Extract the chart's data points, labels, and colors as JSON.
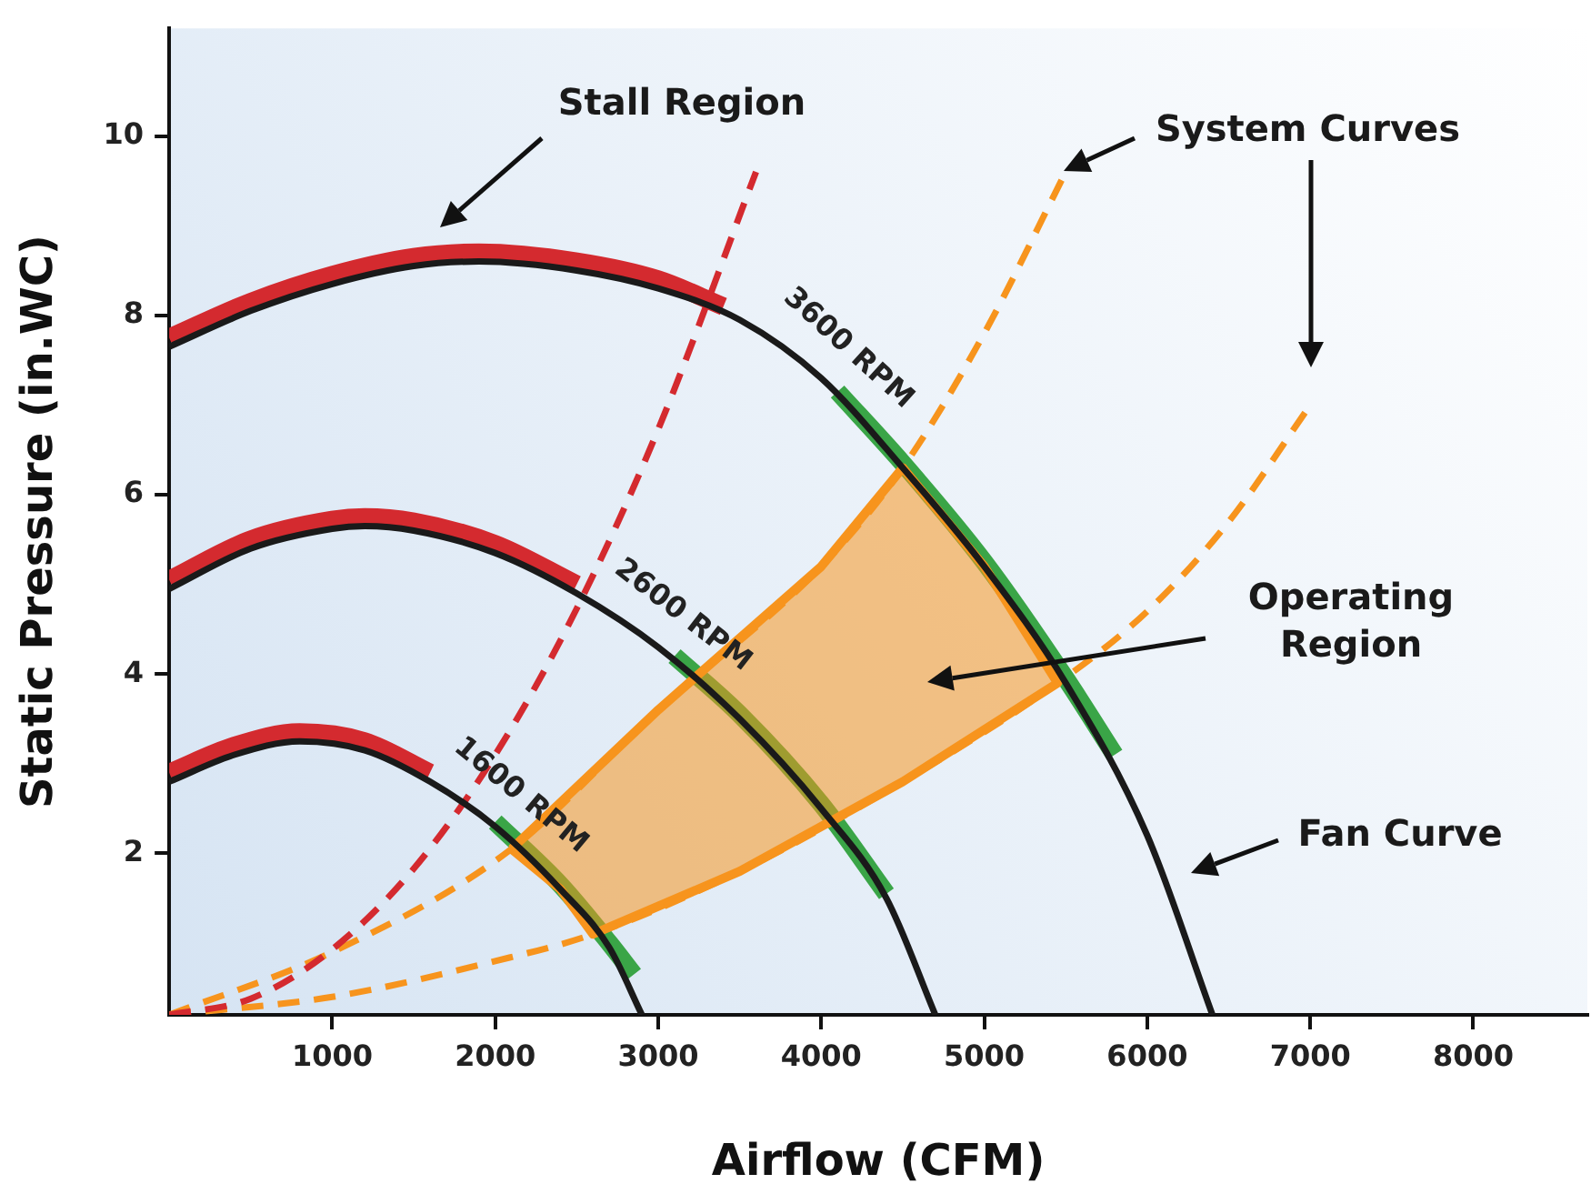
{
  "chart_data": {
    "type": "line",
    "xlabel": "Airflow (CFM)",
    "ylabel": "Static Pressure (in.WC)",
    "xlim": [
      0,
      8700
    ],
    "ylim": [
      0.2,
      11.2
    ],
    "xticks": [
      1000,
      2000,
      3000,
      4000,
      5000,
      6000,
      7000,
      8000
    ],
    "yticks": [
      2,
      4,
      6,
      8,
      10
    ],
    "grid": false,
    "legend": false,
    "marker": "none",
    "series": [
      {
        "name": "3600 RPM",
        "color": "#1a1a1a",
        "line_style": "solid",
        "x": [
          0,
          500,
          1000,
          1500,
          1900,
          2500,
          3000,
          3500,
          4000,
          4500,
          5000,
          5500,
          6000,
          6400
        ],
        "values": [
          7.65,
          8.05,
          8.35,
          8.55,
          8.6,
          8.5,
          8.3,
          7.95,
          7.3,
          6.3,
          5.2,
          3.9,
          2.2,
          0.2
        ]
      },
      {
        "name": "2600 RPM",
        "color": "#1a1a1a",
        "line_style": "solid",
        "x": [
          0,
          500,
          1000,
          1200,
          1500,
          2000,
          2500,
          3000,
          3500,
          4000,
          4400,
          4700
        ],
        "values": [
          4.95,
          5.4,
          5.62,
          5.65,
          5.6,
          5.35,
          4.9,
          4.3,
          3.5,
          2.5,
          1.5,
          0.2
        ]
      },
      {
        "name": "1600 RPM",
        "color": "#1a1a1a",
        "line_style": "solid",
        "x": [
          0,
          400,
          800,
          1200,
          1600,
          2000,
          2400,
          2700,
          2900
        ],
        "values": [
          2.8,
          3.1,
          3.25,
          3.15,
          2.8,
          2.3,
          1.6,
          0.95,
          0.2
        ]
      },
      {
        "color": "#d42a2f",
        "line_style": "solid",
        "x": [
          0,
          500,
          1000,
          1500,
          1900,
          2500,
          3000,
          3400
        ],
        "values": [
          7.75,
          8.15,
          8.45,
          8.65,
          8.7,
          8.6,
          8.4,
          8.1
        ]
      },
      {
        "color": "#d42a2f",
        "line_style": "solid",
        "x": [
          0,
          500,
          1000,
          1200,
          1500,
          2000,
          2500
        ],
        "values": [
          5.05,
          5.5,
          5.72,
          5.75,
          5.7,
          5.45,
          5.0
        ]
      },
      {
        "color": "#d42a2f",
        "line_style": "solid",
        "x": [
          0,
          400,
          800,
          1200,
          1600
        ],
        "values": [
          2.9,
          3.2,
          3.35,
          3.25,
          2.9
        ]
      },
      {
        "color": "#3aa547",
        "line_style": "solid",
        "x": [
          4100,
          4500,
          5000,
          5500,
          5800
        ],
        "values": [
          7.15,
          6.35,
          5.25,
          3.95,
          3.1
        ]
      },
      {
        "color": "#3aa547",
        "line_style": "solid",
        "x": [
          3100,
          3500,
          4000,
          4400
        ],
        "values": [
          4.2,
          3.55,
          2.55,
          1.55
        ]
      },
      {
        "color": "#3aa547",
        "line_style": "solid",
        "x": [
          2000,
          2400,
          2700,
          2850
        ],
        "values": [
          2.35,
          1.65,
          1.0,
          0.65
        ]
      },
      {
        "color": "#d42a2f",
        "line_style": "dashed",
        "x": [
          0,
          500,
          1000,
          1500,
          2000,
          2500,
          3000,
          3600
        ],
        "values": [
          0.2,
          0.38,
          0.93,
          1.83,
          3.1,
          4.73,
          6.73,
          9.6
        ]
      },
      {
        "color": "#f7941d",
        "line_style": "dashed",
        "x": [
          0,
          1000,
          2100,
          3000,
          4000,
          4500,
          5000,
          5500
        ],
        "values": [
          0.2,
          0.9,
          2.05,
          3.6,
          5.2,
          6.3,
          7.8,
          9.6
        ]
      },
      {
        "color": "#f7941d",
        "line_style": "dashed",
        "x": [
          0,
          1000,
          2000,
          2600,
          3500,
          4500,
          5450,
          6000,
          6500,
          7000
        ],
        "values": [
          0.2,
          0.4,
          0.8,
          1.1,
          1.8,
          2.8,
          3.9,
          4.7,
          5.7,
          7.0
        ]
      },
      {
        "type": "area",
        "color": "#f7941d",
        "x": [
          2100,
          3000,
          4000,
          4500,
          5000,
          5450,
          4500,
          3500,
          2600,
          2400,
          2100
        ],
        "values": [
          2.05,
          3.6,
          5.2,
          6.3,
          5.2,
          3.9,
          2.8,
          1.8,
          1.1,
          1.6,
          2.05
        ]
      }
    ],
    "annotations": [
      "Stall Region",
      {
        "text": "System Curves",
        "x": 5490,
        "y": 9.6
      },
      "Operating Region",
      "Fan Curve"
    ]
  }
}
